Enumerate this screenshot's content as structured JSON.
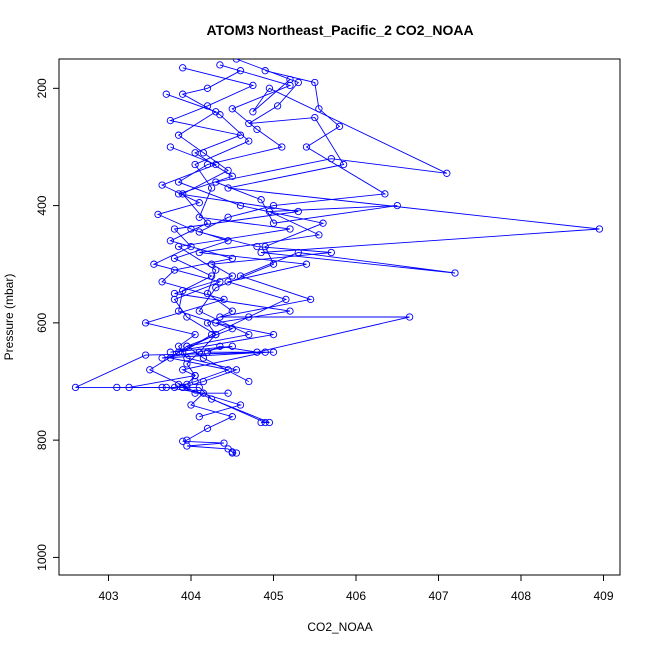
{
  "chart_data": {
    "type": "line",
    "title": "ATOM3 Northeast_Pacific_2 CO2_NOAA",
    "xlabel": "CO2_NOAA",
    "ylabel": "Pressure (mbar)",
    "xlim": [
      402.4,
      409.2
    ],
    "ylim": [
      1030,
      150
    ],
    "y_reversed": true,
    "x_ticks": [
      403,
      404,
      405,
      406,
      407,
      408,
      409
    ],
    "y_ticks": [
      200,
      400,
      600,
      800,
      1000
    ],
    "grid": false,
    "series_color": "#0000ff",
    "marker": "open-circle",
    "series": [
      {
        "x": [
          404.35,
          405.2,
          404.5,
          404.8,
          405.1,
          404.2,
          403.85,
          404.6,
          405.6,
          404.9,
          405.0,
          404.3,
          404.1,
          404.7,
          403.95,
          403.75,
          404.45,
          404.05,
          403.8,
          403.7,
          404.15,
          404.0,
          404.5,
          404.2,
          403.95,
          403.9,
          404.4,
          403.95,
          404.45,
          404.5,
          404.55,
          404.5
        ],
        "y": [
          160,
          195,
          235,
          270,
          300,
          330,
          360,
          400,
          430,
          470,
          500,
          540,
          580,
          620,
          640,
          660,
          680,
          700,
          710,
          710,
          720,
          740,
          760,
          780,
          800,
          802,
          805,
          810,
          815,
          820,
          822,
          822
        ]
      },
      {
        "x": [
          404.6,
          404.2,
          403.9,
          404.35,
          404.7,
          404.05,
          404.25,
          404.1,
          405.2,
          403.85,
          404.3,
          404.2,
          404.5,
          404.2,
          404.3,
          404.1,
          403.95,
          404.05,
          403.25,
          403.1,
          404.1,
          404.25,
          404.95,
          404.85
        ],
        "y": [
          170,
          200,
          210,
          245,
          290,
          330,
          370,
          420,
          440,
          470,
          510,
          550,
          580,
          600,
          620,
          650,
          670,
          690,
          710,
          710,
          710,
          730,
          770,
          770
        ]
      },
      {
        "x": [
          404.9,
          405.5,
          405.55,
          405.8,
          405.4,
          406.35,
          405.0,
          404.45,
          404.1,
          404.8,
          405.7,
          404.25,
          404.5,
          403.8,
          405.2,
          404.3,
          405.0,
          403.75,
          404.5,
          403.65,
          404.9,
          403.9,
          404.05,
          403.95
        ],
        "y": [
          170,
          190,
          235,
          265,
          300,
          380,
          400,
          420,
          445,
          470,
          480,
          500,
          520,
          550,
          580,
          600,
          620,
          650,
          640,
          660,
          650,
          680,
          690,
          705
        ]
      },
      {
        "x": [
          405.2,
          404.75,
          404.95,
          407.1,
          405.7,
          404.3,
          404.85,
          405.0,
          406.5,
          404.95,
          405.55,
          404.1,
          405.4,
          404.45,
          405.15,
          404.7,
          404.25,
          403.9
        ],
        "y": [
          185,
          240,
          200,
          345,
          320,
          360,
          390,
          430,
          400,
          410,
          450,
          480,
          500,
          530,
          560,
          590,
          620,
          650
        ]
      },
      {
        "x": [
          404.55,
          405.3,
          405.05,
          404.7,
          405.5,
          405.85,
          404.45,
          408.95,
          404.85,
          407.2,
          405.3,
          404.6,
          405.45,
          404.35,
          406.65,
          404.8,
          404.35,
          404.2,
          405.0,
          403.45,
          402.6,
          403.65,
          403.9,
          404.05,
          404.45
        ],
        "y": [
          150,
          190,
          230,
          260,
          250,
          330,
          370,
          440,
          480,
          515,
          480,
          520,
          560,
          590,
          590,
          650,
          640,
          650,
          650,
          655,
          710,
          710,
          710,
          720,
          720
        ]
      },
      {
        "x": [
          403.9,
          404.75,
          404.2,
          403.75,
          404.6,
          404.05,
          404.5,
          403.85,
          405.3,
          403.8,
          404.0,
          403.55,
          404.35,
          403.8,
          403.95,
          404.3,
          403.85,
          403.5,
          403.95,
          403.85,
          404.9
        ],
        "y": [
          165,
          195,
          230,
          255,
          280,
          310,
          350,
          380,
          410,
          440,
          470,
          500,
          530,
          560,
          590,
          620,
          650,
          680,
          710,
          705,
          770
        ]
      },
      {
        "x": [
          403.7,
          404.3,
          403.85,
          404.15,
          404.45,
          403.9,
          404.2,
          403.75,
          404.5,
          403.8,
          403.65,
          404.4,
          403.45,
          404.05,
          403.85,
          403.95,
          404.55,
          404.15,
          403.9,
          404.6,
          404.1
        ],
        "y": [
          210,
          240,
          280,
          310,
          340,
          380,
          430,
          460,
          490,
          510,
          530,
          560,
          600,
          620,
          640,
          660,
          680,
          700,
          710,
          740,
          760
        ]
      },
      {
        "x": [
          403.75,
          404.3,
          403.65,
          404.1,
          403.6,
          404.0,
          404.45,
          403.8,
          404.25,
          403.9,
          403.85,
          404.5,
          403.95,
          404.15,
          404.7
        ],
        "y": [
          300,
          330,
          365,
          395,
          415,
          440,
          460,
          490,
          520,
          545,
          580,
          610,
          640,
          660,
          700
        ]
      }
    ]
  }
}
